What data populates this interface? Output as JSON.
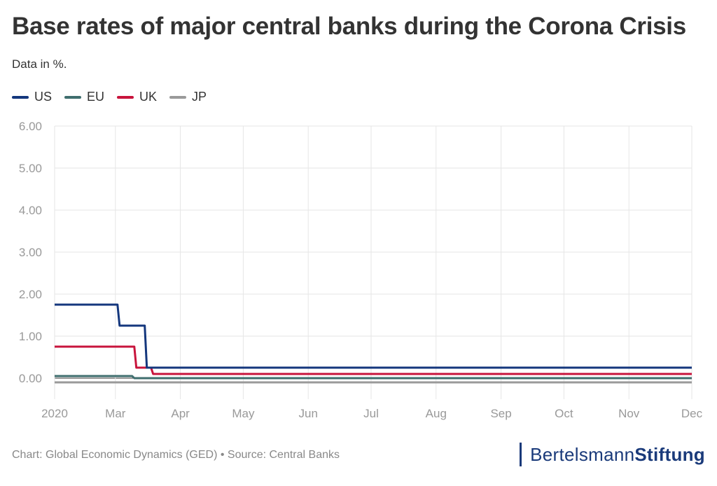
{
  "title": "Base rates of major central banks during the Corona Crisis",
  "subtitle": "Data in %.",
  "footer": "Chart: Global Economic Dynamics (GED) • Source: Central Banks",
  "brand": {
    "part1": "Bertelsmann",
    "part2": "Stiftung",
    "color": "#1a3a7a"
  },
  "chart_data": {
    "type": "line",
    "title": "Base rates of major central banks during the Corona Crisis",
    "xlabel": "",
    "ylabel": "",
    "x_ticks": [
      "2020",
      "Mar",
      "Apr",
      "May",
      "Jun",
      "Jul",
      "Aug",
      "Sep",
      "Oct",
      "Nov",
      "Dec"
    ],
    "y_ticks": [
      "6.00",
      "5.00",
      "4.00",
      "3.00",
      "2.00",
      "1.00",
      "0.00"
    ],
    "ylim": [
      -0.5,
      6.0
    ],
    "xlim": [
      "2020-02-01",
      "2020-12-01"
    ],
    "grid": true,
    "legend_position": "top-left",
    "series": [
      {
        "name": "US",
        "color": "#14377d",
        "points": [
          [
            "2020-02-01",
            1.75
          ],
          [
            "2020-03-02",
            1.75
          ],
          [
            "2020-03-03",
            1.25
          ],
          [
            "2020-03-15",
            1.25
          ],
          [
            "2020-03-16",
            0.25
          ],
          [
            "2020-12-01",
            0.25
          ]
        ]
      },
      {
        "name": "EU",
        "color": "#3f6e6e",
        "points": [
          [
            "2020-02-01",
            0.05
          ],
          [
            "2020-03-09",
            0.05
          ],
          [
            "2020-03-10",
            0.0
          ],
          [
            "2020-12-01",
            0.0
          ]
        ]
      },
      {
        "name": "UK",
        "color": "#c8143c",
        "points": [
          [
            "2020-02-01",
            0.75
          ],
          [
            "2020-03-10",
            0.75
          ],
          [
            "2020-03-11",
            0.25
          ],
          [
            "2020-03-18",
            0.25
          ],
          [
            "2020-03-19",
            0.1
          ],
          [
            "2020-12-01",
            0.1
          ]
        ]
      },
      {
        "name": "JP",
        "color": "#9a9a9a",
        "points": [
          [
            "2020-02-01",
            -0.1
          ],
          [
            "2020-12-01",
            -0.1
          ]
        ]
      }
    ]
  }
}
